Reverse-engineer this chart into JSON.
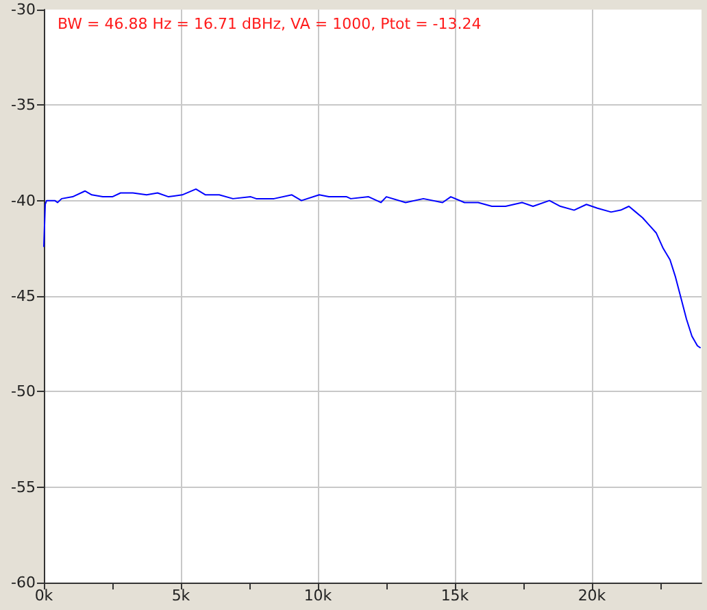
{
  "chart_data": {
    "type": "line",
    "annotations": [
      "BW = 46.88 Hz = 16.71 dBHz, VA = 1000, Ptot = -13.24"
    ],
    "series": [
      {
        "color": "#0000ff",
        "x": [
          0,
          50,
          100,
          400,
          500,
          650,
          1050,
          1500,
          1750,
          2150,
          2500,
          2800,
          3250,
          3750,
          4150,
          4550,
          5050,
          5550,
          5900,
          6400,
          6900,
          7550,
          7750,
          8400,
          9050,
          9400,
          10050,
          10400,
          11050,
          11200,
          11850,
          12300,
          12500,
          13200,
          13850,
          14550,
          14850,
          15350,
          15850,
          16350,
          16850,
          17450,
          17850,
          18450,
          18850,
          19350,
          19800,
          20200,
          20700,
          21050,
          21350,
          21600,
          21850,
          22100,
          22350,
          22600,
          22850,
          23050,
          23250,
          23450,
          23650,
          23850,
          23950
        ],
        "values": [
          -42.4,
          -40.2,
          -40.0,
          -40.0,
          -40.1,
          -39.9,
          -39.8,
          -39.5,
          -39.7,
          -39.8,
          -39.8,
          -39.6,
          -39.6,
          -39.7,
          -39.6,
          -39.8,
          -39.7,
          -39.4,
          -39.7,
          -39.7,
          -39.9,
          -39.8,
          -39.9,
          -39.9,
          -39.7,
          -40.0,
          -39.7,
          -39.8,
          -39.8,
          -39.9,
          -39.8,
          -40.1,
          -39.8,
          -40.1,
          -39.9,
          -40.1,
          -39.8,
          -40.1,
          -40.1,
          -40.3,
          -40.3,
          -40.1,
          -40.3,
          -40.0,
          -40.3,
          -40.5,
          -40.2,
          -40.4,
          -40.6,
          -40.5,
          -40.3,
          -40.6,
          -40.9,
          -41.3,
          -41.7,
          -42.5,
          -43.1,
          -44.0,
          -45.1,
          -46.2,
          -47.1,
          -47.6,
          -47.7
        ]
      }
    ],
    "xlim": [
      0,
      24000
    ],
    "xticks": [
      {
        "value": 0,
        "label": "0k"
      },
      {
        "value": 2500,
        "label": null
      },
      {
        "value": 5000,
        "label": "5k"
      },
      {
        "value": 7500,
        "label": null
      },
      {
        "value": 10000,
        "label": "10k"
      },
      {
        "value": 12500,
        "label": null
      },
      {
        "value": 15000,
        "label": "15k"
      },
      {
        "value": 17500,
        "label": null
      },
      {
        "value": 20000,
        "label": "20k"
      },
      {
        "value": 22500,
        "label": null
      }
    ],
    "ylim": [
      -60,
      -30
    ],
    "yticks": [
      -60,
      -55,
      -50,
      -45,
      -40,
      -35,
      -30
    ],
    "grid": true,
    "marker": "none",
    "line_style": "solid"
  }
}
